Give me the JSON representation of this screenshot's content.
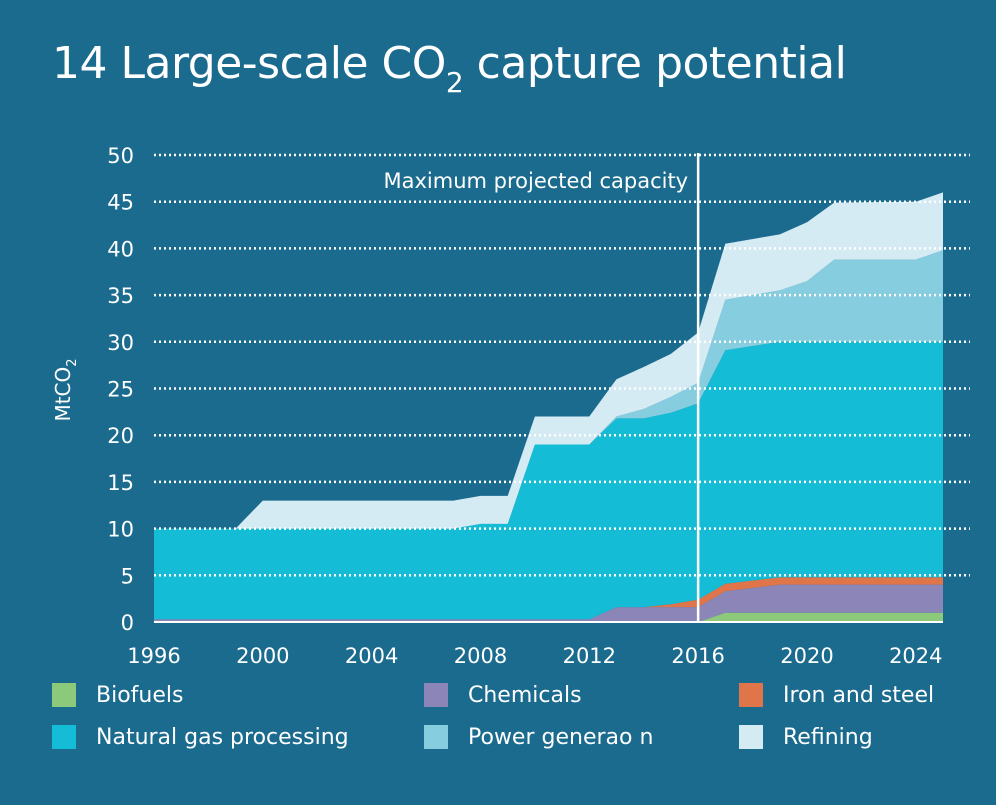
{
  "title_main": "14 Large-scale CO",
  "title_sub": "2",
  "title_rest": " capture potential",
  "chart_data": {
    "type": "area",
    "stacked": true,
    "title": "14 Large-scale CO2 capture potential",
    "ylabel": "MtCO2",
    "ylabel_main": "MtCO",
    "ylabel_sub": "2",
    "ylim": [
      0,
      50
    ],
    "xlim": [
      1996,
      2025
    ],
    "yticks": [
      "0",
      "5",
      "10",
      "15",
      "20",
      "25",
      "30",
      "35",
      "40",
      "45",
      "50"
    ],
    "xticks": [
      "1996",
      "2000",
      "2004",
      "2008",
      "2012",
      "2016",
      "2020",
      "2024"
    ],
    "grid": true,
    "legend_position": "bottom",
    "annotation": {
      "text": "Maximum projected capacity",
      "x": 2016
    },
    "x": [
      1996,
      1999,
      2000,
      2007,
      2008,
      2009,
      2010,
      2012,
      2013,
      2014,
      2015,
      2016,
      2017,
      2019,
      2020,
      2021,
      2024,
      2025
    ],
    "series": [
      {
        "name": "Biofuels",
        "color": "#8dc97a",
        "values": [
          0,
          0,
          0,
          0,
          0,
          0,
          0,
          0,
          0,
          0,
          0,
          0,
          1,
          1,
          1,
          1,
          1,
          1
        ]
      },
      {
        "name": "Chemicals",
        "color": "#8c86b8",
        "values": [
          0.3,
          0.3,
          0.3,
          0.3,
          0.3,
          0.3,
          0.3,
          0.3,
          1.6,
          1.6,
          1.6,
          1.6,
          2.3,
          3,
          3,
          3,
          3,
          3
        ]
      },
      {
        "name": "Iron and steel",
        "color": "#e0754a",
        "values": [
          0,
          0,
          0,
          0,
          0,
          0,
          0,
          0,
          0,
          0,
          0.3,
          0.8,
          0.8,
          0.8,
          0.8,
          0.8,
          0.8,
          0.8
        ]
      },
      {
        "name": "Natural gas processing",
        "color": "#15bcd5",
        "values": [
          9.7,
          9.7,
          9.7,
          9.7,
          10.2,
          10.2,
          18.7,
          18.7,
          20.2,
          20.2,
          20.5,
          21,
          25,
          25.2,
          25.2,
          25.2,
          25.2,
          25.2
        ]
      },
      {
        "name": "Power generaо n",
        "color": "#86cde0",
        "values": [
          0,
          0,
          0,
          0,
          0,
          0,
          0,
          0,
          0.2,
          1,
          1.7,
          2.2,
          5.4,
          5.5,
          6.5,
          8.8,
          8.8,
          9.8
        ]
      },
      {
        "name": "Refining",
        "color": "#d4ebf3",
        "values": [
          0,
          0,
          3,
          3,
          3,
          3,
          3,
          3,
          4,
          4.5,
          4.6,
          5.4,
          6,
          6,
          6.3,
          6.1,
          6.2,
          6.2
        ]
      }
    ]
  },
  "colors": {
    "background": "#1b6b8f",
    "grid": "#ffffff",
    "text": "#ffffff"
  }
}
